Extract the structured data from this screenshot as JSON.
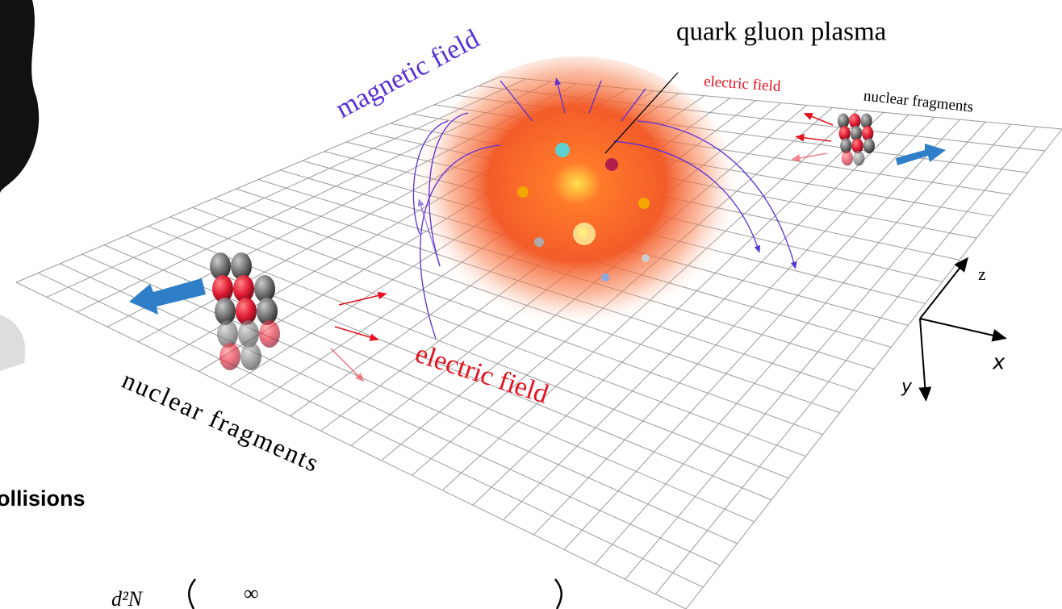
{
  "labels": {
    "quark_gluon_plasma": "quark gluon plasma",
    "magnetic_field": "magnetic field",
    "electric_field_small": "electric field",
    "electric_field_large": "electric field",
    "nuclear_fragments_right": "nuclear fragments",
    "nuclear_fragments_left": "nuclear fragments"
  },
  "axes": {
    "z": "z",
    "x": "x",
    "y": "y"
  },
  "slide": {
    "heading": "ollisions",
    "formula_numerator": "d²N",
    "formula_symbol": "∞"
  }
}
